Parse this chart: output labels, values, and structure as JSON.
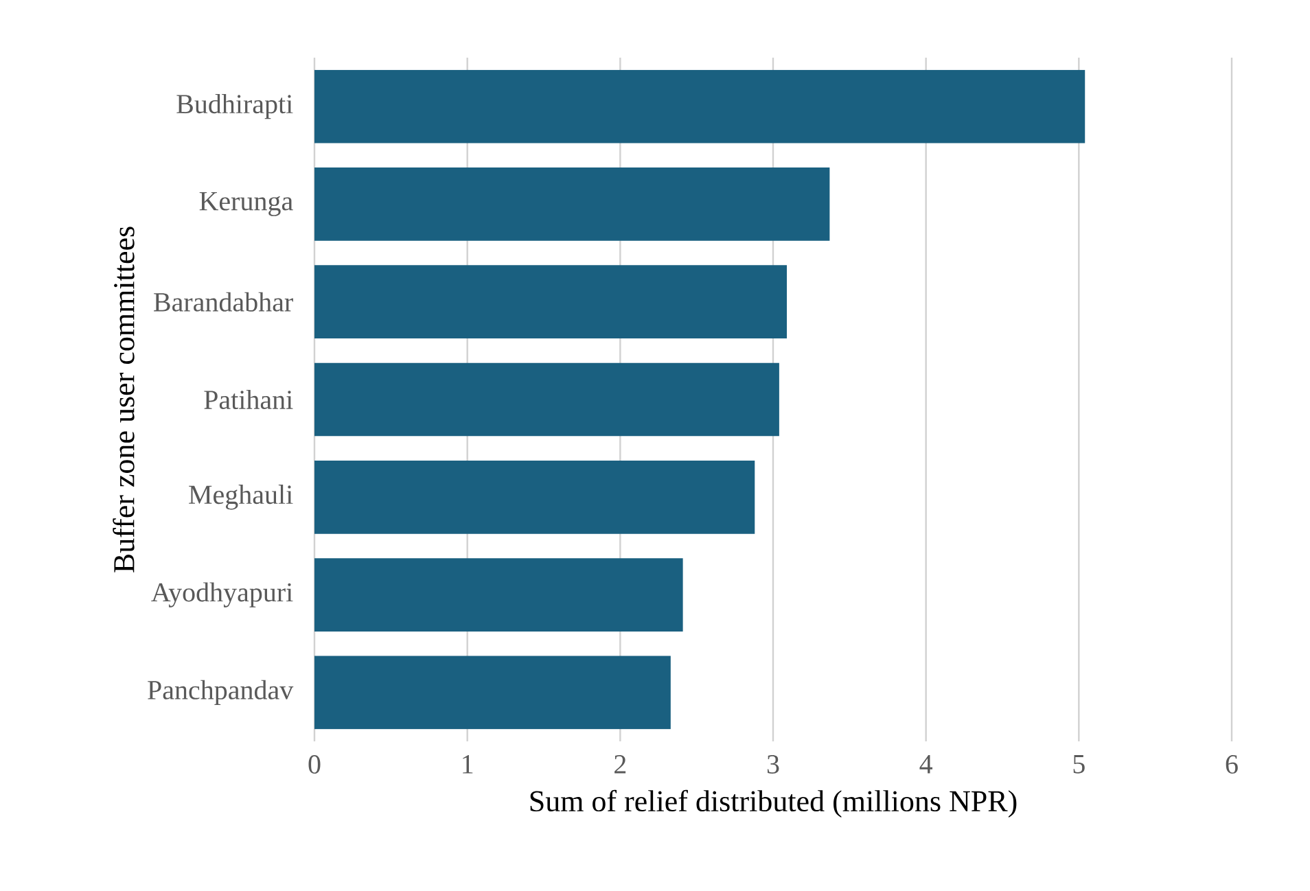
{
  "chart_data": {
    "type": "bar",
    "orientation": "horizontal",
    "xlabel": "Sum of relief distributed (millions NPR)",
    "ylabel": "Buffer zone user committees",
    "categories": [
      "Budhirapti",
      "Kerunga",
      "Barandabhar",
      "Patihani",
      "Meghauli",
      "Ayodhyapuri",
      "Panchpandav"
    ],
    "values": [
      5.04,
      3.37,
      3.09,
      3.04,
      2.88,
      2.41,
      2.33
    ],
    "color": "#1a6080",
    "xlim": [
      0,
      6
    ],
    "xticks": [
      0,
      1,
      2,
      3,
      4,
      5,
      6
    ],
    "grid": "x"
  }
}
